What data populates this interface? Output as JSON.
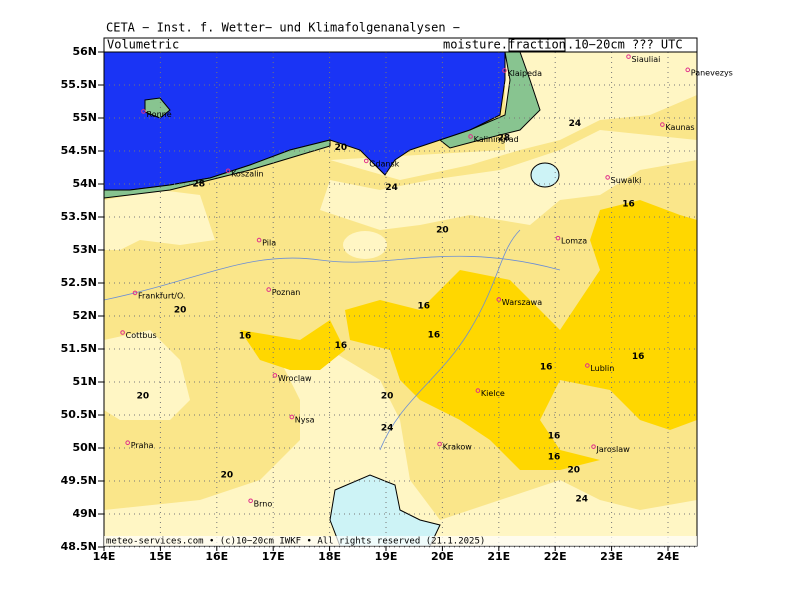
{
  "map": {
    "title": "CETA − Inst. f. Wetter− und Klimafolgenanalysen −",
    "left_label": "Volumetric",
    "right_label_1": "moisture.",
    "right_label_box": "fraction",
    "right_label_2": ".10−20cm ??? UTC",
    "footer": "meteo-services.com • (c)10−20cm IWKF • All rights reserved (21.1.2025)",
    "lat_ticks": [
      {
        "value": 56,
        "label": "56N"
      },
      {
        "value": 55.5,
        "label": "55.5N"
      },
      {
        "value": 55,
        "label": "55N"
      },
      {
        "value": 54.5,
        "label": "54.5N"
      },
      {
        "value": 54,
        "label": "54N"
      },
      {
        "value": 53.5,
        "label": "53.5N"
      },
      {
        "value": 53,
        "label": "53N"
      },
      {
        "value": 52.5,
        "label": "52.5N"
      },
      {
        "value": 52,
        "label": "52N"
      },
      {
        "value": 51.5,
        "label": "51.5N"
      },
      {
        "value": 51,
        "label": "51N"
      },
      {
        "value": 50.5,
        "label": "50.5N"
      },
      {
        "value": 50,
        "label": "50N"
      },
      {
        "value": 49.5,
        "label": "49.5N"
      },
      {
        "value": 49,
        "label": "49N"
      },
      {
        "value": 48.5,
        "label": "48.5N"
      }
    ],
    "lon_ticks": [
      {
        "value": 14,
        "label": "14E"
      },
      {
        "value": 15,
        "label": "15E"
      },
      {
        "value": 16,
        "label": "16E"
      },
      {
        "value": 17,
        "label": "17E"
      },
      {
        "value": 18,
        "label": "18E"
      },
      {
        "value": 19,
        "label": "19E"
      },
      {
        "value": 20,
        "label": "20E"
      },
      {
        "value": 21,
        "label": "21E"
      },
      {
        "value": 22,
        "label": "22E"
      },
      {
        "value": 23,
        "label": "23E"
      },
      {
        "value": 24,
        "label": "24E"
      }
    ],
    "cities": [
      {
        "name": "Ronne",
        "lon": 14.7,
        "lat": 55.1
      },
      {
        "name": "Koszalin",
        "lon": 16.2,
        "lat": 54.2
      },
      {
        "name": "Gdansk",
        "lon": 18.65,
        "lat": 54.35
      },
      {
        "name": "Kaliningrad",
        "lon": 20.5,
        "lat": 54.72
      },
      {
        "name": "Klaipeda",
        "lon": 21.1,
        "lat": 55.72
      },
      {
        "name": "Siauliai",
        "lon": 23.3,
        "lat": 55.93
      },
      {
        "name": "Panevezys",
        "lon": 24.35,
        "lat": 55.73
      },
      {
        "name": "Kaunas",
        "lon": 23.9,
        "lat": 54.9
      },
      {
        "name": "Suwalki",
        "lon": 22.93,
        "lat": 54.1
      },
      {
        "name": "Pila",
        "lon": 16.75,
        "lat": 53.15
      },
      {
        "name": "Lomza",
        "lon": 22.05,
        "lat": 53.18
      },
      {
        "name": "Frankfurt/O.",
        "lon": 14.55,
        "lat": 52.35
      },
      {
        "name": "Poznan",
        "lon": 16.92,
        "lat": 52.4
      },
      {
        "name": "Warszawa",
        "lon": 21.0,
        "lat": 52.25
      },
      {
        "name": "Cottbus",
        "lon": 14.33,
        "lat": 51.75
      },
      {
        "name": "Wroclaw",
        "lon": 17.03,
        "lat": 51.1
      },
      {
        "name": "Lublin",
        "lon": 22.57,
        "lat": 51.25
      },
      {
        "name": "Kielce",
        "lon": 20.63,
        "lat": 50.87
      },
      {
        "name": "Nysa",
        "lon": 17.33,
        "lat": 50.47
      },
      {
        "name": "Praha",
        "lon": 14.42,
        "lat": 50.08
      },
      {
        "name": "Krakow",
        "lon": 19.95,
        "lat": 50.06
      },
      {
        "name": "Jaroslaw",
        "lon": 22.68,
        "lat": 50.02
      },
      {
        "name": "Brno",
        "lon": 16.6,
        "lat": 49.2
      }
    ],
    "contour_labels": [
      {
        "text": "20",
        "lon": 18.2,
        "lat": 54.55
      },
      {
        "text": "24",
        "lon": 19.1,
        "lat": 53.95
      },
      {
        "text": "20",
        "lon": 20.0,
        "lat": 53.3
      },
      {
        "text": "16",
        "lon": 23.3,
        "lat": 53.7
      },
      {
        "text": "20",
        "lon": 15.35,
        "lat": 52.09
      },
      {
        "text": "16",
        "lon": 16.5,
        "lat": 51.7
      },
      {
        "text": "16",
        "lon": 18.2,
        "lat": 51.55
      },
      {
        "text": "16",
        "lon": 19.67,
        "lat": 52.15
      },
      {
        "text": "16",
        "lon": 19.85,
        "lat": 51.71
      },
      {
        "text": "16",
        "lon": 21.84,
        "lat": 51.23
      },
      {
        "text": "16",
        "lon": 23.47,
        "lat": 51.39
      },
      {
        "text": "20",
        "lon": 14.69,
        "lat": 50.79
      },
      {
        "text": "20",
        "lon": 19.02,
        "lat": 50.79
      },
      {
        "text": "24",
        "lon": 19.02,
        "lat": 50.3
      },
      {
        "text": "16",
        "lon": 21.98,
        "lat": 50.18
      },
      {
        "text": "16",
        "lon": 21.98,
        "lat": 49.86
      },
      {
        "text": "20",
        "lon": 22.33,
        "lat": 49.67
      },
      {
        "text": "20",
        "lon": 16.18,
        "lat": 49.59
      },
      {
        "text": "24",
        "lon": 22.47,
        "lat": 49.23
      },
      {
        "text": "24",
        "lon": 22.35,
        "lat": 54.92
      },
      {
        "text": "28",
        "lon": 21.09,
        "lat": 54.7
      },
      {
        "text": "28",
        "lon": 15.68,
        "lat": 54.0
      }
    ]
  }
}
